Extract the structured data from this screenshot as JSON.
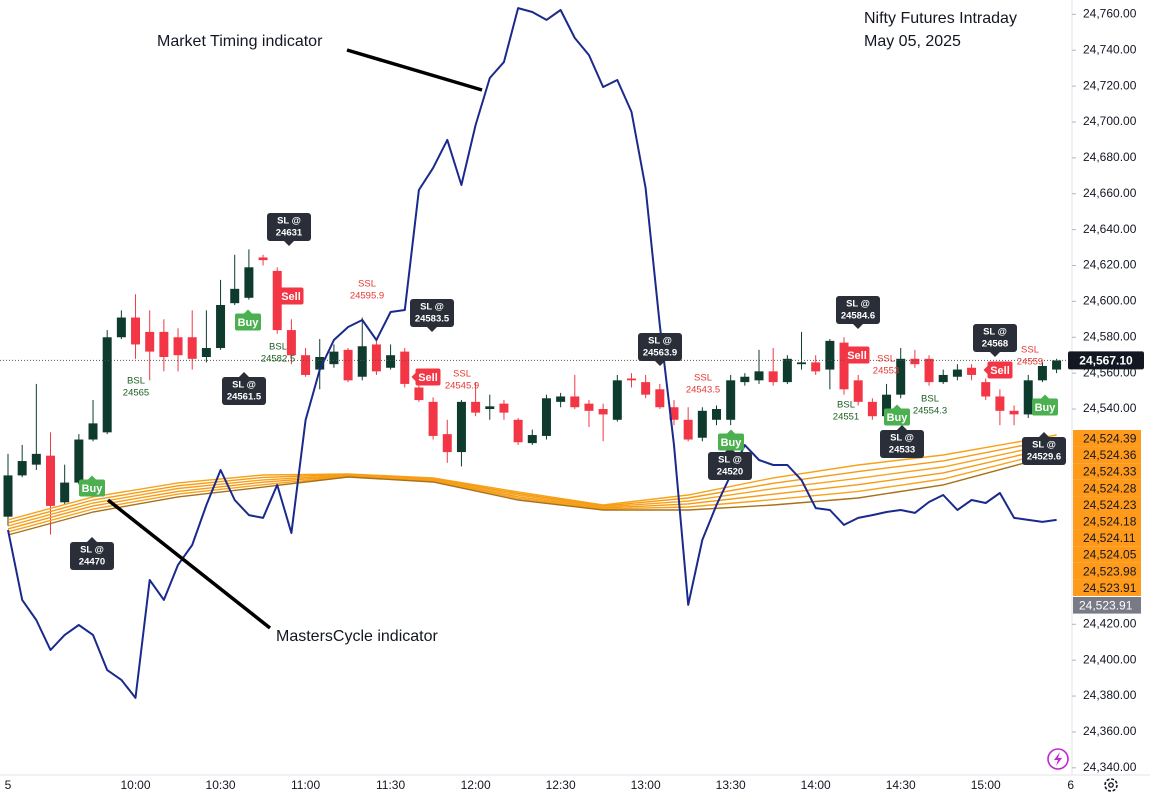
{
  "chart_data": {
    "type": "candlestick",
    "title": "Nifty Futures Intraday",
    "subtitle": "May 05, 2025",
    "x": [
      "09:15",
      "09:20",
      "09:25",
      "09:30",
      "09:35",
      "09:40",
      "09:45",
      "09:50",
      "09:55",
      "10:00",
      "10:05",
      "10:10",
      "10:15",
      "10:20",
      "10:25",
      "10:30",
      "10:35",
      "10:40",
      "10:45",
      "10:50",
      "10:55",
      "11:00",
      "11:05",
      "11:10",
      "11:15",
      "11:20",
      "11:25",
      "11:30",
      "11:35",
      "11:40",
      "11:45",
      "11:50",
      "11:55",
      "12:00",
      "12:05",
      "12:10",
      "12:15",
      "12:20",
      "12:25",
      "12:30",
      "12:35",
      "12:40",
      "12:45",
      "12:50",
      "12:55",
      "13:00",
      "13:05",
      "13:10",
      "13:15",
      "13:20",
      "13:25",
      "13:30",
      "13:35",
      "13:40",
      "13:45",
      "13:50",
      "13:55",
      "14:00",
      "14:05",
      "14:10",
      "14:15",
      "14:20",
      "14:25",
      "14:30",
      "14:35",
      "14:40",
      "14:45",
      "14:50",
      "14:55",
      "15:00",
      "15:05",
      "15:10",
      "15:15",
      "15:20",
      "15:25"
    ],
    "open": [
      24480,
      24503,
      24509,
      24514,
      24488,
      24499,
      24523,
      24527,
      24580,
      24591,
      24583,
      24583,
      24580,
      24580,
      24569,
      24574,
      24599,
      24602,
      24624.5,
      24617,
      24584,
      24570,
      24562,
      24565,
      24573,
      24558,
      24576,
      24563,
      24572,
      24552,
      24544,
      24526,
      24516,
      24544,
      24540,
      24543,
      24534,
      24521,
      24525,
      24544,
      24547,
      24543,
      24540,
      24534,
      24557,
      24555,
      24551,
      24541,
      24534,
      24524,
      24534,
      24534,
      24555,
      24556,
      24561,
      24555,
      24565,
      24566,
      24562,
      24577,
      24556,
      24544,
      24536,
      24548,
      24568,
      24568,
      24555,
      24558,
      24563,
      24555,
      24547,
      24539,
      24537,
      24556,
      24562
    ],
    "high": [
      24515,
      24520,
      24554,
      24527,
      24509,
      24526,
      24545,
      24584,
      24595,
      24604,
      24595,
      24590,
      24585,
      24595,
      24595,
      24612,
      24626,
      24629,
      24626,
      24619,
      24590,
      24574,
      24579,
      24576,
      24574,
      24591,
      24579,
      24576,
      24574,
      24559,
      24546.5,
      24534,
      24545,
      24555,
      24548,
      24545,
      24535,
      24528.5,
      24548,
      24549,
      24559,
      24545,
      24543,
      24559,
      24560,
      24559,
      24554,
      24545,
      24541,
      24541,
      24542,
      24559,
      24560,
      24573,
      24574,
      24570,
      24583,
      24570,
      24579,
      24580,
      24559,
      24546,
      24554,
      24574,
      24573,
      24570,
      24562,
      24565,
      24565,
      24557,
      24551,
      24542,
      24559,
      24566,
      24568
    ],
    "low": [
      24475,
      24502,
      24506,
      24470,
      24487,
      24498,
      24522,
      24526,
      24579,
      24568,
      24556,
      24561,
      24561,
      24562,
      24566,
      24573,
      24598,
      24601,
      24620,
      24582,
      24565,
      24558,
      24551,
      24563,
      24555,
      24556,
      24559,
      24562,
      24552,
      24544,
      24523,
      24510,
      24508,
      24536,
      24534,
      24534,
      24520,
      24520,
      24523,
      24541,
      24540,
      24530,
      24522,
      24533,
      24552,
      24546,
      24540,
      24531,
      24522,
      24522,
      24531,
      24531,
      24553,
      24554,
      24553,
      24554,
      24562,
      24559,
      24551,
      24548,
      24542,
      24534,
      24534,
      24546,
      24563,
      24553,
      24554,
      24556,
      24556,
      24545,
      24531,
      24531,
      24535,
      24555,
      24560
    ],
    "close": [
      24503,
      24511,
      24515,
      24486,
      24499,
      24523,
      24532,
      24580,
      24591,
      24576,
      24572,
      24569,
      24570,
      24568,
      24574,
      24598,
      24607,
      24619,
      24623,
      24584,
      24570,
      24559,
      24569,
      24572,
      24556,
      24575,
      24561,
      24570,
      24554,
      24545,
      24525,
      24516,
      24544,
      24538,
      24541.5,
      24538,
      24521.5,
      24525.5,
      24546,
      24547,
      24541,
      24539,
      24537,
      24556,
      24556,
      24548,
      24541,
      24534,
      24523,
      24539,
      24540,
      24556,
      24558,
      24561,
      24555,
      24568,
      24566,
      24561,
      24578,
      24551,
      24544,
      24536,
      24548,
      24568,
      24565,
      24555,
      24559,
      24562,
      24559,
      24547,
      24539,
      24537,
      24556,
      24564,
      24567.1
    ],
    "up_color": "#0f3b2e",
    "down_color": "#f23645",
    "overlays": [
      {
        "name": "Market Timing indicator",
        "color": "#1a2a8c",
        "values": [
          24472.6,
          24433.6,
          24422.4,
          24405.7,
          24414.1,
          24419.6,
          24414.1,
          24394.5,
          24389.0,
          24379.0,
          24444.7,
          24433.6,
          24453.1,
          24464.2,
          24486.5,
          24506.0,
          24489.3,
          24480.9,
          24479.3,
          24497.7,
          24470.9,
          24533.9,
          24561.8,
          24578.5,
          24585.7,
          24589.6,
          24578.5,
          24594.1,
          24595.2,
          24662.1,
          24674.4,
          24690.0,
          24664.9,
          24698.3,
          24724.5,
          24733.4,
          24763.5,
          24761.3,
          24756.9,
          24762.4,
          24746.8,
          24737.3,
          24719.5,
          24723.4,
          24705.6,
          24663.2,
          24586.8,
          24519.9,
          24430.8,
          24467.0,
          24486.5,
          24503.2,
          24519.9,
          24511.6,
          24508.8,
          24508.8,
          24500.4,
          24484.8,
          24483.7,
          24475.4,
          24479.3,
          24480.9,
          24482.6,
          24483.7,
          24482.1,
          24488.2,
          24492.1,
          24483.7,
          24489.3,
          24487.6,
          24493.2,
          24479.3,
          24478.2,
          24477.1,
          24478.2
        ]
      }
    ],
    "band": {
      "name": "MastersCycle indicator",
      "x": [
        "09:15",
        "09:45",
        "10:15",
        "10:45",
        "11:15",
        "11:45",
        "12:15",
        "12:45",
        "13:15",
        "13:45",
        "14:15",
        "14:45",
        "15:15",
        "15:25"
      ],
      "lines": [
        {
          "color": "#f7a21b",
          "values": [
            24478.2,
            24491.0,
            24498.8,
            24503.2,
            24503.8,
            24501.6,
            24493.8,
            24486.5,
            24492.1,
            24501.6,
            24508.8,
            24514.4,
            24522.7,
            24525.5
          ]
        },
        {
          "color": "#f59a14",
          "values": [
            24476.5,
            24489.3,
            24497.2,
            24501.9,
            24503.5,
            24501.1,
            24492.9,
            24485.9,
            24490.4,
            24498.6,
            24505.1,
            24511.1,
            24520.3,
            24523.3
          ]
        },
        {
          "color": "#f7a21b",
          "values": [
            24474.8,
            24487.6,
            24495.7,
            24500.5,
            24503.1,
            24500.7,
            24492.0,
            24485.4,
            24488.7,
            24495.6,
            24501.4,
            24507.7,
            24517.8,
            24521.1
          ]
        },
        {
          "color": "#f59a14",
          "values": [
            24473.2,
            24486.0,
            24494.1,
            24499.2,
            24502.8,
            24500.2,
            24491.1,
            24484.8,
            24487.1,
            24492.5,
            24497.8,
            24504.4,
            24515.4,
            24518.8
          ]
        },
        {
          "color": "#f7a21b",
          "values": [
            24471.5,
            24484.3,
            24492.6,
            24497.8,
            24502.4,
            24499.8,
            24490.2,
            24484.3,
            24485.4,
            24489.5,
            24494.1,
            24501.0,
            24512.9,
            24516.6
          ]
        },
        {
          "color": "#a8701a",
          "values": [
            24469.8,
            24482.6,
            24491.0,
            24496.5,
            24502.1,
            24499.3,
            24489.3,
            24483.7,
            24483.7,
            24486.5,
            24490.4,
            24497.7,
            24510.5,
            24514.4
          ]
        }
      ]
    },
    "ylim": [
      24336,
      24768
    ],
    "yticks": [
      {
        "value": 24760,
        "label": "24,760.00"
      },
      {
        "value": 24740,
        "label": "24,740.00"
      },
      {
        "value": 24720,
        "label": "24,720.00"
      },
      {
        "value": 24700,
        "label": "24,700.00"
      },
      {
        "value": 24680,
        "label": "24,680.00"
      },
      {
        "value": 24660,
        "label": "24,660.00"
      },
      {
        "value": 24640,
        "label": "24,640.00"
      },
      {
        "value": 24620,
        "label": "24,620.00"
      },
      {
        "value": 24600,
        "label": "24,600.00"
      },
      {
        "value": 24580,
        "label": "24,580.00"
      },
      {
        "value": 24560,
        "label": "24,560.00"
      },
      {
        "value": 24540,
        "label": "24,540.00"
      },
      {
        "value": 24420,
        "label": "24,420.00"
      },
      {
        "value": 24400,
        "label": "24,400.00"
      },
      {
        "value": 24380,
        "label": "24,380.00"
      },
      {
        "value": 24360,
        "label": "24,360.00"
      },
      {
        "value": 24340,
        "label": "24,340.00"
      }
    ],
    "xticks": [
      {
        "value": "09:15",
        "label": "5"
      },
      "10:00",
      "10:30",
      "11:00",
      "11:30",
      "12:00",
      "12:30",
      "13:00",
      "13:30",
      "14:00",
      "14:30",
      "15:00",
      {
        "value": "15:30",
        "label": "6"
      }
    ],
    "last_price": {
      "value": 24567.1,
      "label": "24,567.10"
    },
    "overlay_labels": [
      "24,524.39",
      "24,524.36",
      "24,524.33",
      "24,524.28",
      "24,524.23",
      "24,524.18",
      "24,524.11",
      "24,524.05",
      "24,523.98",
      "24,523.91"
    ],
    "overlay_labels_color": "#ff9a1a",
    "overlay_last_label": "24,523.91",
    "signal_colors": {
      "sl": "#2a2e39",
      "buy": "#4caf50",
      "sell": "#f23645",
      "ssl": "#e53935",
      "bsl": "#1b5e20"
    },
    "signals": [
      {
        "kind": "sl",
        "lines": [
          "SL @",
          "24631"
        ]
      },
      {
        "kind": "sl",
        "lines": [
          "SL @",
          "24583.5"
        ]
      },
      {
        "kind": "sl",
        "lines": [
          "SL @",
          "24563.9"
        ]
      },
      {
        "kind": "sl",
        "lines": [
          "SL @",
          "24584.6"
        ]
      },
      {
        "kind": "sl",
        "lines": [
          "SL @",
          "24568"
        ]
      },
      {
        "kind": "sl",
        "lines": [
          "SL @",
          "24561.5"
        ]
      },
      {
        "kind": "sl",
        "lines": [
          "SL @",
          "24470"
        ]
      },
      {
        "kind": "sl",
        "lines": [
          "SL @",
          "24520"
        ]
      },
      {
        "kind": "sl",
        "lines": [
          "SL @",
          "24533"
        ]
      },
      {
        "kind": "sl",
        "lines": [
          "SL @",
          "24529.6"
        ]
      },
      {
        "kind": "ssl",
        "lines": [
          "SSL",
          "24595.9"
        ]
      },
      {
        "kind": "ssl",
        "lines": [
          "SSL",
          "24545.9"
        ]
      },
      {
        "kind": "ssl",
        "lines": [
          "SSL",
          "24543.5"
        ]
      },
      {
        "kind": "ssl",
        "lines": [
          "SSL",
          "24553"
        ]
      },
      {
        "kind": "ssl",
        "lines": [
          "SSL",
          "24559"
        ]
      },
      {
        "kind": "bsl",
        "lines": [
          "BSL",
          "24565"
        ]
      },
      {
        "kind": "bsl",
        "lines": [
          "BSL",
          "24582.5"
        ]
      },
      {
        "kind": "bsl",
        "lines": [
          "BSL",
          "24551"
        ]
      },
      {
        "kind": "bsl",
        "lines": [
          "BSL",
          "24554.3"
        ]
      },
      {
        "kind": "buy",
        "lines": [
          "Buy"
        ]
      },
      {
        "kind": "buy",
        "lines": [
          "Buy"
        ]
      },
      {
        "kind": "buy",
        "lines": [
          "Buy"
        ]
      },
      {
        "kind": "buy",
        "lines": [
          "Buy"
        ]
      },
      {
        "kind": "buy",
        "lines": [
          "Buy"
        ]
      },
      {
        "kind": "sell",
        "lines": [
          "Sell"
        ]
      },
      {
        "kind": "sell",
        "lines": [
          "Sell"
        ]
      },
      {
        "kind": "sell",
        "lines": [
          "Sell"
        ]
      },
      {
        "kind": "sell",
        "lines": [
          "Sell"
        ]
      }
    ]
  }
}
